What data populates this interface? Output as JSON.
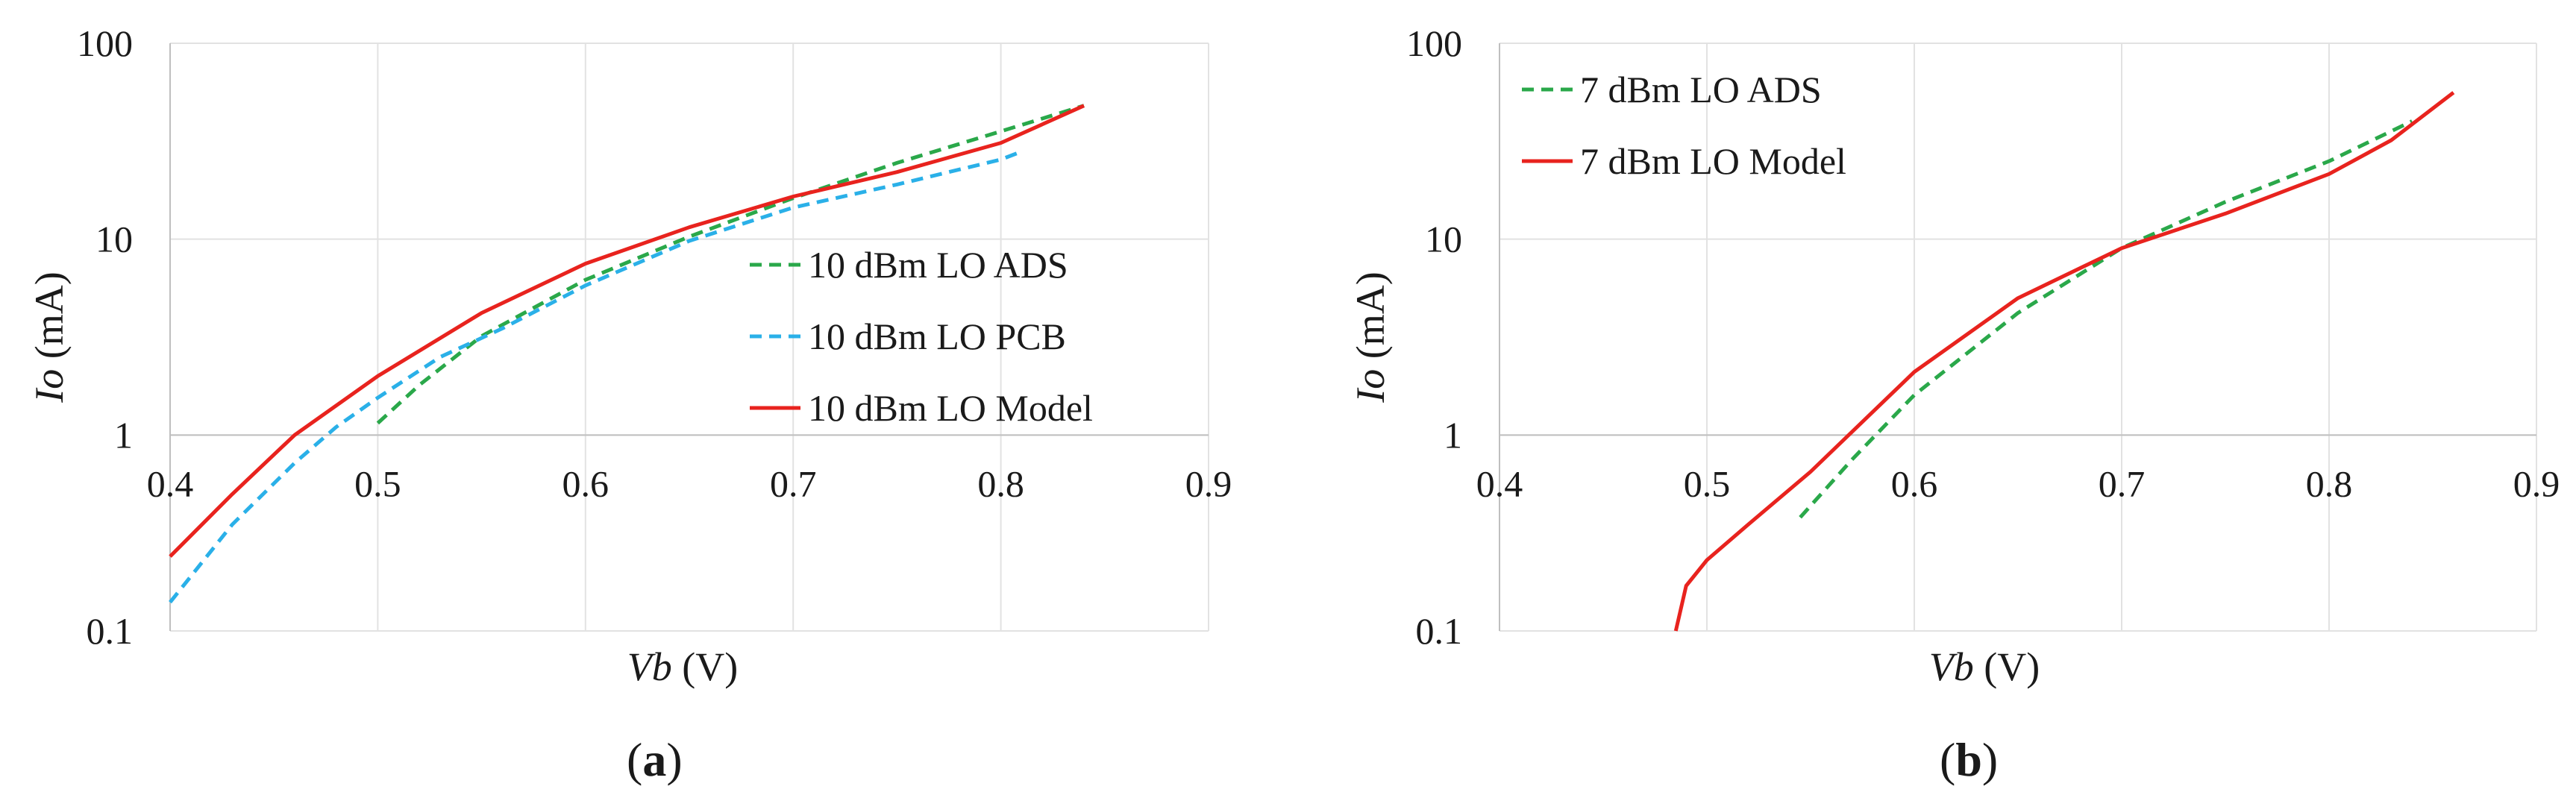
{
  "chart_data": [
    {
      "type": "line",
      "panel_label": "a",
      "xlabel": {
        "var": "Vb",
        "unit": " (V)"
      },
      "ylabel": {
        "var": "Io",
        "unit": " (mA)"
      },
      "xlim": [
        0.4,
        0.9
      ],
      "ylim": [
        0.1,
        100
      ],
      "y_scale": "log",
      "x_ticks": [
        "0.4",
        "0.5",
        "0.6",
        "0.7",
        "0.8",
        "0.9"
      ],
      "x_tick_values": [
        0.4,
        0.5,
        0.6,
        0.7,
        0.8,
        0.9
      ],
      "y_ticks": [
        "0.1",
        "1",
        "10",
        "100"
      ],
      "y_tick_values": [
        0.1,
        1,
        10,
        100
      ],
      "x_tick_labels_at_y": 1,
      "grid": true,
      "legend_position": "right",
      "series": [
        {
          "name": "10 dBm LO ADS",
          "color": "#2aa84a",
          "dash": "dashed",
          "x": [
            0.5,
            0.52,
            0.55,
            0.6,
            0.65,
            0.7,
            0.75,
            0.8,
            0.84
          ],
          "y": [
            1.15,
            1.8,
            3.2,
            6.2,
            10.3,
            16.2,
            24.5,
            35.5,
            48
          ]
        },
        {
          "name": "10 dBm LO PCB",
          "color": "#2ab0e8",
          "dash": "dashed",
          "x": [
            0.4,
            0.43,
            0.46,
            0.48,
            0.5,
            0.53,
            0.56,
            0.6,
            0.65,
            0.7,
            0.75,
            0.8,
            0.81
          ],
          "y": [
            0.14,
            0.35,
            0.72,
            1.1,
            1.55,
            2.5,
            3.5,
            5.8,
            9.8,
            14.5,
            19,
            25.5,
            28
          ]
        },
        {
          "name": "10 dBm LO Model",
          "color": "#e8231e",
          "dash": "solid",
          "x": [
            0.4,
            0.43,
            0.46,
            0.5,
            0.55,
            0.6,
            0.65,
            0.7,
            0.75,
            0.8,
            0.84
          ],
          "y": [
            0.24,
            0.5,
            1.0,
            2.0,
            4.2,
            7.5,
            11.5,
            16.5,
            22,
            31,
            48
          ]
        }
      ]
    },
    {
      "type": "line",
      "panel_label": "b",
      "xlabel": {
        "var": "Vb",
        "unit": " (V)"
      },
      "ylabel": {
        "var": "Io",
        "unit": " (mA)"
      },
      "xlim": [
        0.4,
        0.9
      ],
      "ylim": [
        0.1,
        100
      ],
      "y_scale": "log",
      "x_ticks": [
        "0.4",
        "0.5",
        "0.6",
        "0.7",
        "0.8",
        "0.9"
      ],
      "x_tick_values": [
        0.4,
        0.5,
        0.6,
        0.7,
        0.8,
        0.9
      ],
      "y_ticks": [
        "0.1",
        "1",
        "10",
        "100"
      ],
      "y_tick_values": [
        0.1,
        1,
        10,
        100
      ],
      "x_tick_labels_at_y": 1,
      "grid": true,
      "legend_position": "top-left",
      "series": [
        {
          "name": "7 dBm LO ADS",
          "color": "#2aa84a",
          "dash": "dashed",
          "x": [
            0.545,
            0.57,
            0.6,
            0.65,
            0.7,
            0.75,
            0.8,
            0.84
          ],
          "y": [
            0.38,
            0.75,
            1.6,
            4.2,
            9.0,
            15.5,
            25,
            40
          ]
        },
        {
          "name": "7 dBm LO Model",
          "color": "#e8231e",
          "dash": "solid",
          "x": [
            0.485,
            0.49,
            0.5,
            0.52,
            0.55,
            0.6,
            0.65,
            0.7,
            0.75,
            0.8,
            0.83,
            0.86
          ],
          "y": [
            0.1,
            0.17,
            0.23,
            0.35,
            0.65,
            2.1,
            5.0,
            9.0,
            13.5,
            21.5,
            32,
            56
          ]
        }
      ]
    }
  ]
}
